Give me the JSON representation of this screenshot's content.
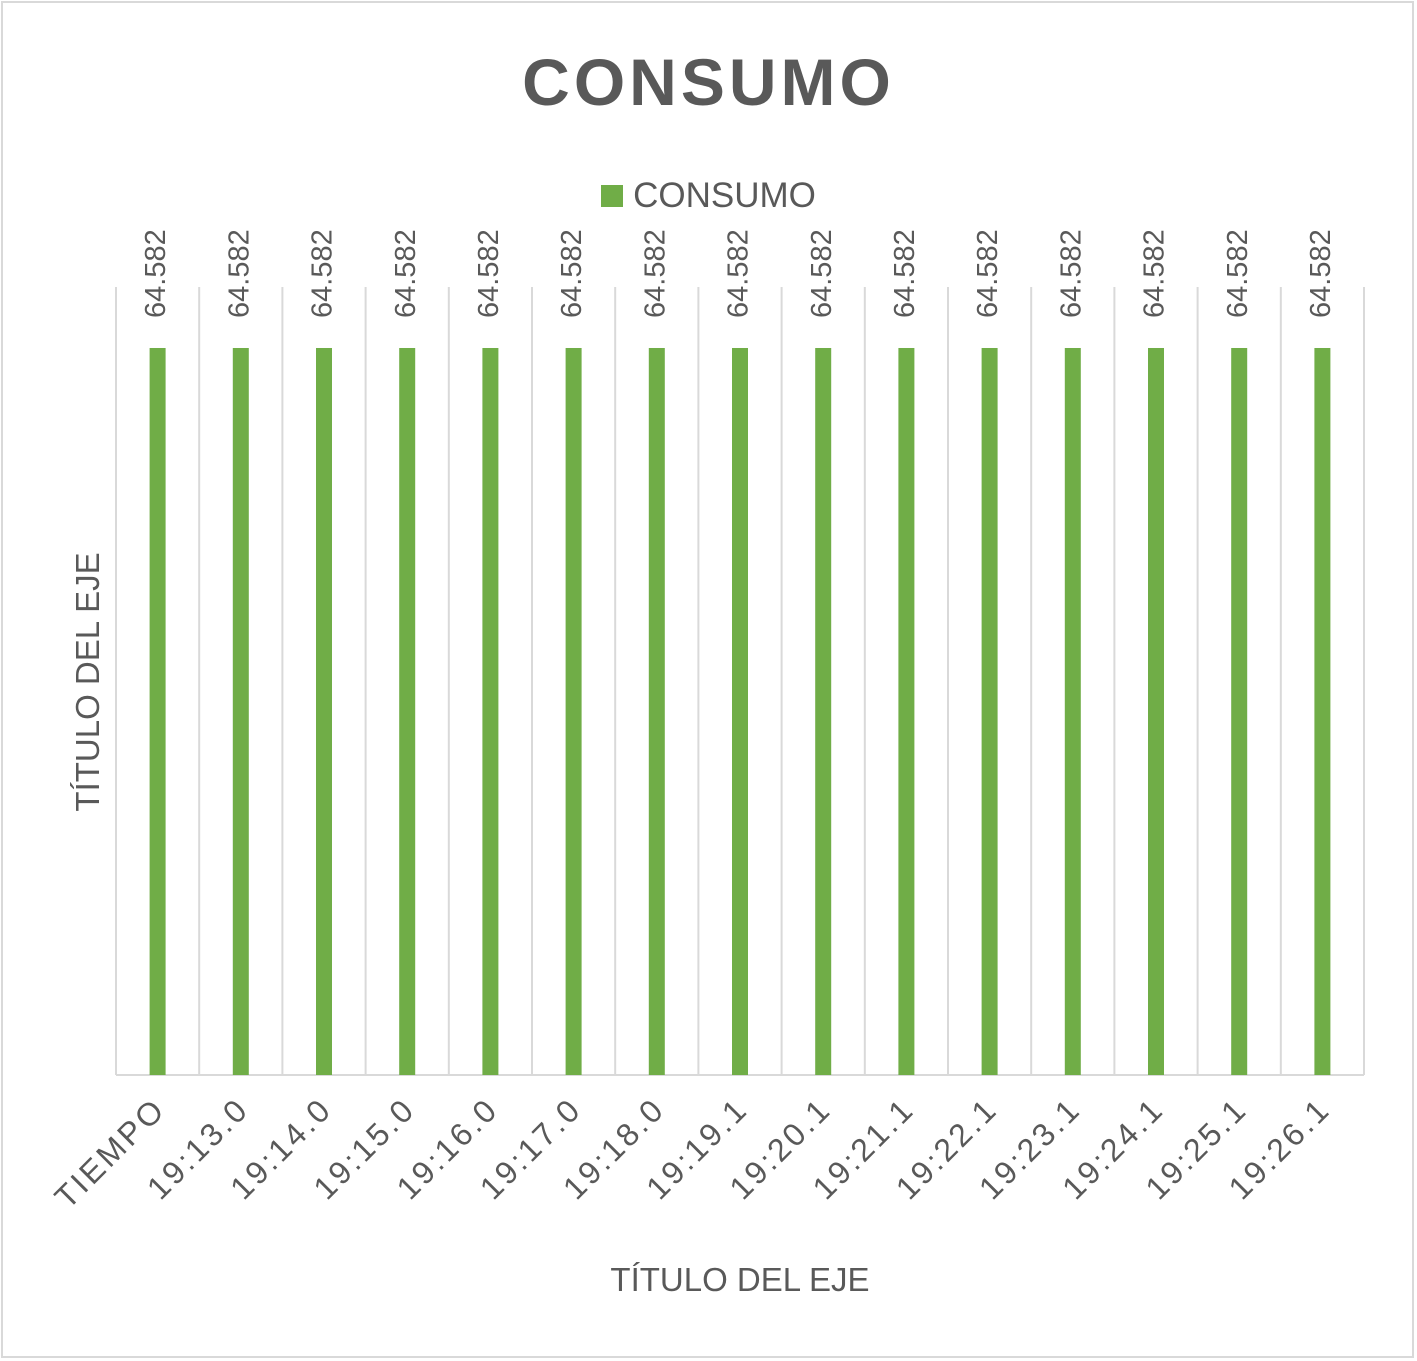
{
  "chart_data": {
    "type": "bar",
    "title": "CONSUMO",
    "xlabel": "TÍTULO DEL EJE",
    "ylabel": "TÍTULO DEL EJE",
    "categories": [
      "TIEMPO",
      "19:13.0",
      "19:14.0",
      "19:15.0",
      "19:16.0",
      "19:17.0",
      "19:18.0",
      "19:19.1",
      "19:20.1",
      "19:21.1",
      "19:22.1",
      "19:23.1",
      "19:24.1",
      "19:25.1",
      "19:26.1"
    ],
    "series": [
      {
        "name": "CONSUMO",
        "color": "#70ad47",
        "values": [
          64.582,
          64.582,
          64.582,
          64.582,
          64.582,
          64.582,
          64.582,
          64.582,
          64.582,
          64.582,
          64.582,
          64.582,
          64.582,
          64.582,
          64.582
        ],
        "data_labels": [
          "64.582",
          "64.582",
          "64.582",
          "64.582",
          "64.582",
          "64.582",
          "64.582",
          "64.582",
          "64.582",
          "64.582",
          "64.582",
          "64.582",
          "64.582",
          "64.582",
          "64.582"
        ]
      }
    ],
    "ylim": [
      0,
      70
    ],
    "gridlines": "vertical",
    "legend_position": "top"
  }
}
